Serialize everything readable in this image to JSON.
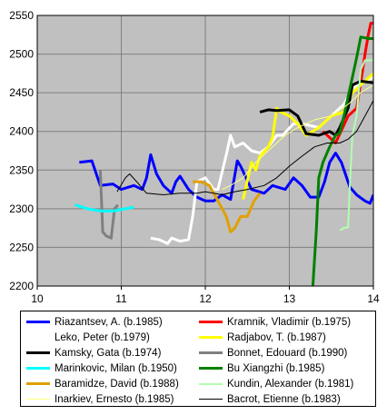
{
  "chart_data": {
    "type": "line",
    "title": "",
    "xlabel": "",
    "ylabel": "",
    "xlim": [
      10,
      14
    ],
    "ylim": [
      2200,
      2550
    ],
    "x_ticks": [
      "10",
      "11",
      "12",
      "13",
      "14"
    ],
    "y_ticks": [
      "2200",
      "2250",
      "2300",
      "2350",
      "2400",
      "2450",
      "2500",
      "2550"
    ],
    "grid": true,
    "plot_background": "#c0c0c0",
    "legend_position": "bottom",
    "series": [
      {
        "name": "Riazantsev, A. (b.1985)",
        "color": "#0000ff",
        "width": 3,
        "points": [
          [
            10.5,
            2360
          ],
          [
            10.65,
            2362
          ],
          [
            10.75,
            2330
          ],
          [
            10.9,
            2332
          ],
          [
            11.0,
            2325
          ],
          [
            11.15,
            2330
          ],
          [
            11.25,
            2325
          ],
          [
            11.3,
            2340
          ],
          [
            11.35,
            2370
          ],
          [
            11.42,
            2345
          ],
          [
            11.5,
            2330
          ],
          [
            11.6,
            2320
          ],
          [
            11.65,
            2335
          ],
          [
            11.7,
            2342
          ],
          [
            11.8,
            2325
          ],
          [
            11.9,
            2315
          ],
          [
            12.0,
            2310
          ],
          [
            12.1,
            2310
          ],
          [
            12.2,
            2318
          ],
          [
            12.3,
            2312
          ],
          [
            12.38,
            2362
          ],
          [
            12.42,
            2355
          ],
          [
            12.55,
            2325
          ],
          [
            12.7,
            2320
          ],
          [
            12.8,
            2330
          ],
          [
            12.95,
            2325
          ],
          [
            13.05,
            2340
          ],
          [
            13.15,
            2330
          ],
          [
            13.25,
            2315
          ],
          [
            13.35,
            2315
          ],
          [
            13.42,
            2335
          ],
          [
            13.48,
            2360
          ],
          [
            13.55,
            2372
          ],
          [
            13.62,
            2360
          ],
          [
            13.72,
            2328
          ],
          [
            13.8,
            2318
          ],
          [
            13.9,
            2310
          ],
          [
            13.96,
            2307
          ],
          [
            14.0,
            2318
          ]
        ]
      },
      {
        "name": "Kramnik, Vladimir (b.1975)",
        "color": "#ff0000",
        "width": 3,
        "points": [
          [
            13.4,
            2400
          ],
          [
            13.55,
            2385
          ],
          [
            13.7,
            2420
          ],
          [
            13.8,
            2430
          ],
          [
            13.86,
            2470
          ],
          [
            13.9,
            2500
          ],
          [
            13.94,
            2525
          ],
          [
            13.97,
            2540
          ],
          [
            14.0,
            2540
          ]
        ]
      },
      {
        "name": "Leko, Peter (b.1979)",
        "color": "#ffffff",
        "width": 3,
        "points": [
          [
            11.35,
            2262
          ],
          [
            11.45,
            2260
          ],
          [
            11.55,
            2255
          ],
          [
            11.6,
            2262
          ],
          [
            11.7,
            2258
          ],
          [
            11.8,
            2260
          ],
          [
            11.85,
            2290
          ],
          [
            11.9,
            2335
          ],
          [
            12.0,
            2340
          ],
          [
            12.1,
            2325
          ],
          [
            12.15,
            2325
          ],
          [
            12.25,
            2370
          ],
          [
            12.3,
            2395
          ],
          [
            12.35,
            2380
          ],
          [
            12.45,
            2385
          ],
          [
            12.55,
            2375
          ],
          [
            12.65,
            2372
          ],
          [
            12.75,
            2380
          ],
          [
            12.85,
            2395
          ],
          [
            12.92,
            2395
          ],
          [
            13.05,
            2410
          ],
          [
            13.15,
            2410
          ],
          [
            13.35,
            2405
          ],
          [
            13.5,
            2420
          ],
          [
            13.65,
            2435
          ],
          [
            13.75,
            2455
          ],
          [
            13.85,
            2462
          ],
          [
            14.0,
            2470
          ]
        ]
      },
      {
        "name": "Radjabov, T. (b.1987)",
        "color": "#ffff00",
        "width": 3,
        "points": [
          [
            12.45,
            2312
          ],
          [
            12.55,
            2360
          ],
          [
            12.6,
            2350
          ],
          [
            12.65,
            2368
          ],
          [
            12.75,
            2380
          ],
          [
            12.8,
            2392
          ],
          [
            12.85,
            2430
          ],
          [
            12.9,
            2425
          ],
          [
            13.0,
            2420
          ],
          [
            13.1,
            2410
          ],
          [
            13.2,
            2395
          ],
          [
            13.35,
            2405
          ],
          [
            13.5,
            2420
          ],
          [
            13.65,
            2425
          ],
          [
            13.75,
            2450
          ],
          [
            13.85,
            2460
          ],
          [
            13.95,
            2470
          ],
          [
            14.0,
            2475
          ]
        ]
      },
      {
        "name": "Kamsky, Gata (b.1974)",
        "color": "#000000",
        "width": 3,
        "points": [
          [
            12.65,
            2425
          ],
          [
            12.75,
            2428
          ],
          [
            12.85,
            2427
          ],
          [
            13.0,
            2428
          ],
          [
            13.1,
            2420
          ],
          [
            13.2,
            2397
          ],
          [
            13.35,
            2395
          ],
          [
            13.48,
            2400
          ],
          [
            13.55,
            2395
          ],
          [
            13.6,
            2405
          ],
          [
            13.7,
            2430
          ],
          [
            13.75,
            2460
          ],
          [
            13.85,
            2465
          ],
          [
            14.0,
            2463
          ]
        ]
      },
      {
        "name": "Bonnet, Edouard (b.1990)",
        "color": "#808080",
        "width": 3,
        "points": [
          [
            10.75,
            2350
          ],
          [
            10.78,
            2270
          ],
          [
            10.82,
            2265
          ],
          [
            10.88,
            2262
          ],
          [
            10.92,
            2300
          ],
          [
            10.96,
            2305
          ]
        ]
      },
      {
        "name": "Marinkovic, Milan (b.1950)",
        "color": "#00ffff",
        "width": 3,
        "points": [
          [
            10.45,
            2305
          ],
          [
            10.6,
            2300
          ],
          [
            10.75,
            2297
          ],
          [
            10.9,
            2297
          ],
          [
            11.05,
            2300
          ],
          [
            11.15,
            2302
          ]
        ]
      },
      {
        "name": "Bu Xiangzhi (b.1985)",
        "color": "#008000",
        "width": 3,
        "points": [
          [
            13.28,
            2200
          ],
          [
            13.32,
            2270
          ],
          [
            13.35,
            2340
          ],
          [
            13.4,
            2360
          ],
          [
            13.48,
            2380
          ],
          [
            13.55,
            2395
          ],
          [
            13.6,
            2398
          ],
          [
            13.65,
            2420
          ],
          [
            13.7,
            2445
          ],
          [
            13.75,
            2470
          ],
          [
            13.8,
            2495
          ],
          [
            13.85,
            2522
          ],
          [
            13.95,
            2520
          ],
          [
            14.0,
            2520
          ]
        ]
      },
      {
        "name": "Baramidze, David (b.1988)",
        "color": "#e0a000",
        "width": 3,
        "points": [
          [
            11.85,
            2335
          ],
          [
            11.95,
            2335
          ],
          [
            12.05,
            2330
          ],
          [
            12.15,
            2310
          ],
          [
            12.25,
            2290
          ],
          [
            12.3,
            2270
          ],
          [
            12.35,
            2275
          ],
          [
            12.42,
            2290
          ],
          [
            12.5,
            2290
          ],
          [
            12.58,
            2310
          ],
          [
            12.65,
            2320
          ]
        ]
      },
      {
        "name": "Kundin, Alexander (b.1981)",
        "color": "#b0ffb0",
        "width": 2,
        "points": [
          [
            13.6,
            2272
          ],
          [
            13.65,
            2275
          ],
          [
            13.7,
            2276
          ],
          [
            13.72,
            2330
          ],
          [
            13.75,
            2395
          ],
          [
            13.8,
            2420
          ],
          [
            13.85,
            2480
          ],
          [
            13.9,
            2492
          ],
          [
            14.0,
            2492
          ]
        ]
      },
      {
        "name": "Inarkiev, Ernesto (b.1985)",
        "color": "#ffff80",
        "width": 1,
        "points": [
          [
            12.2,
            2325
          ],
          [
            12.3,
            2330
          ],
          [
            12.45,
            2340
          ],
          [
            12.6,
            2360
          ],
          [
            12.8,
            2380
          ],
          [
            12.95,
            2395
          ],
          [
            13.1,
            2405
          ],
          [
            13.3,
            2415
          ],
          [
            13.5,
            2420
          ],
          [
            13.7,
            2435
          ],
          [
            13.85,
            2450
          ],
          [
            14.0,
            2460
          ]
        ]
      },
      {
        "name": "Bacrot, Etienne (b.1983)",
        "color": "#000000",
        "width": 1,
        "points": [
          [
            10.95,
            2322
          ],
          [
            11.05,
            2340
          ],
          [
            11.1,
            2345
          ],
          [
            11.2,
            2333
          ],
          [
            11.3,
            2320
          ],
          [
            11.5,
            2318
          ],
          [
            11.7,
            2320
          ],
          [
            11.9,
            2320
          ],
          [
            12.0,
            2322
          ],
          [
            12.2,
            2318
          ],
          [
            12.35,
            2322
          ],
          [
            12.5,
            2325
          ],
          [
            12.7,
            2330
          ],
          [
            12.85,
            2340
          ],
          [
            13.0,
            2355
          ],
          [
            13.15,
            2368
          ],
          [
            13.3,
            2380
          ],
          [
            13.45,
            2385
          ],
          [
            13.6,
            2385
          ],
          [
            13.7,
            2390
          ],
          [
            13.8,
            2400
          ],
          [
            13.9,
            2420
          ],
          [
            14.0,
            2440
          ]
        ]
      }
    ]
  }
}
